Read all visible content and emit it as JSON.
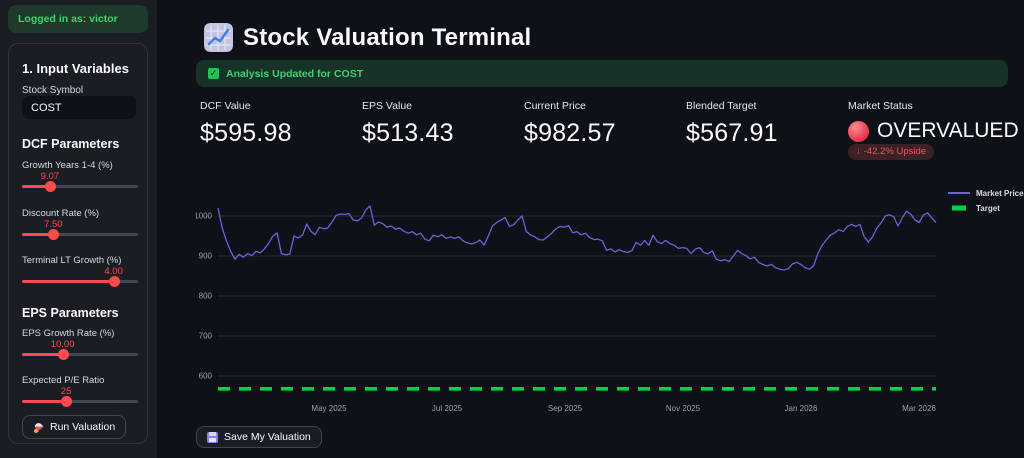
{
  "app": {
    "title": "Stock Valuation Terminal"
  },
  "sidebar": {
    "logged_in_text": "Logged in as: victor",
    "section_title": "1. Input Variables",
    "stock_symbol": {
      "label": "Stock Symbol",
      "value": "COST"
    },
    "dcf_heading": "DCF Parameters",
    "eps_heading": "EPS Parameters",
    "sliders": [
      {
        "label": "Growth Years 1-4 (%)",
        "value": "9.07",
        "fraction": 0.24
      },
      {
        "label": "Discount Rate (%)",
        "value": "7.50",
        "fraction": 0.27
      },
      {
        "label": "Terminal LT Growth (%)",
        "value": "4.00",
        "fraction": 0.79
      },
      {
        "label": "EPS Growth Rate (%)",
        "value": "10.00",
        "fraction": 0.35
      },
      {
        "label": "Expected P/E Ratio",
        "value": "25",
        "fraction": 0.38
      }
    ],
    "run_button_label": "Run Valuation"
  },
  "banner": {
    "text": "Analysis Updated for COST",
    "icon": "check-square-icon"
  },
  "metrics": [
    {
      "label": "DCF Value",
      "value": "$595.98"
    },
    {
      "label": "EPS Value",
      "value": "$513.43"
    },
    {
      "label": "Current Price",
      "value": "$982.57"
    },
    {
      "label": "Blended Target",
      "value": "$567.91"
    },
    {
      "label": "Market Status",
      "value": "OVERVALUED",
      "delta_arrow": "↓",
      "delta": "-42.2% Upside"
    }
  ],
  "chart_data": {
    "type": "line",
    "title": "",
    "xlabel": "",
    "ylabel": "",
    "x_ticks": [
      "May 2025",
      "Jul 2025",
      "Sep 2025",
      "Nov 2025",
      "Jan 2026",
      "Mar 2026"
    ],
    "x_range_note": "approx Mar 2025 to Mar 2026, evenly spaced samples",
    "y_ticks": [
      600,
      700,
      800,
      900,
      1000
    ],
    "ylim": [
      560,
      1045
    ],
    "grid": "horizontal-only",
    "legend_position": "top-right",
    "legend": [
      {
        "name": "Market Price",
        "color": "#6a63d8",
        "style": "solid"
      },
      {
        "name": "Target",
        "color": "#00d04a",
        "style": "dashed"
      }
    ],
    "target_value": 567.91,
    "series": [
      {
        "name": "Market Price",
        "values": [
          1020,
          970,
          938,
          912,
          892,
          904,
          897,
          906,
          901,
          912,
          908,
          918,
          932,
          950,
          958,
          906,
          903,
          905,
          950,
          945,
          952,
          980,
          962,
          953,
          972,
          968,
          970,
          985,
          1002,
          1005,
          1004,
          1006,
          990,
          988,
          995,
          1015,
          1025,
          977,
          985,
          981,
          972,
          975,
          967,
          970,
          962,
          957,
          961,
          953,
          957,
          942,
          938,
          952,
          948,
          953,
          944,
          948,
          944,
          948,
          938,
          933,
          930,
          933,
          940,
          927,
          950,
          975,
          984,
          990,
          996,
          974,
          978,
          990,
          1000,
          961,
          953,
          948,
          941,
          940,
          948,
          957,
          968,
          974,
          972,
          976,
          958,
          961,
          953,
          957,
          946,
          941,
          942,
          938,
          914,
          918,
          910,
          916,
          911,
          909,
          913,
          934,
          927,
          939,
          927,
          952,
          936,
          931,
          939,
          931,
          927,
          919,
          921,
          919,
          906,
          917,
          921,
          909,
          905,
          913,
          892,
          888,
          891,
          886,
          900,
          914,
          906,
          901,
          893,
          897,
          884,
          879,
          875,
          879,
          871,
          867,
          865,
          868,
          880,
          884,
          879,
          871,
          867,
          875,
          905,
          926,
          940,
          952,
          958,
          966,
          961,
          974,
          979,
          974,
          979,
          948,
          935,
          948,
          970,
          983,
          1000,
          1003,
          998,
          975,
          995,
          1012,
          1005,
          990,
          984,
          1002,
          1008,
          995,
          984
        ]
      }
    ]
  },
  "footer": {
    "save_button_label": "Save My Valuation"
  },
  "colors": {
    "accent_red": "#ff4b4b",
    "success_green": "#21c354",
    "price_line": "#6a63d8",
    "target_green": "#00d04a",
    "main_bg": "#0e1117",
    "sidebar_bg": "#1a1d24"
  }
}
